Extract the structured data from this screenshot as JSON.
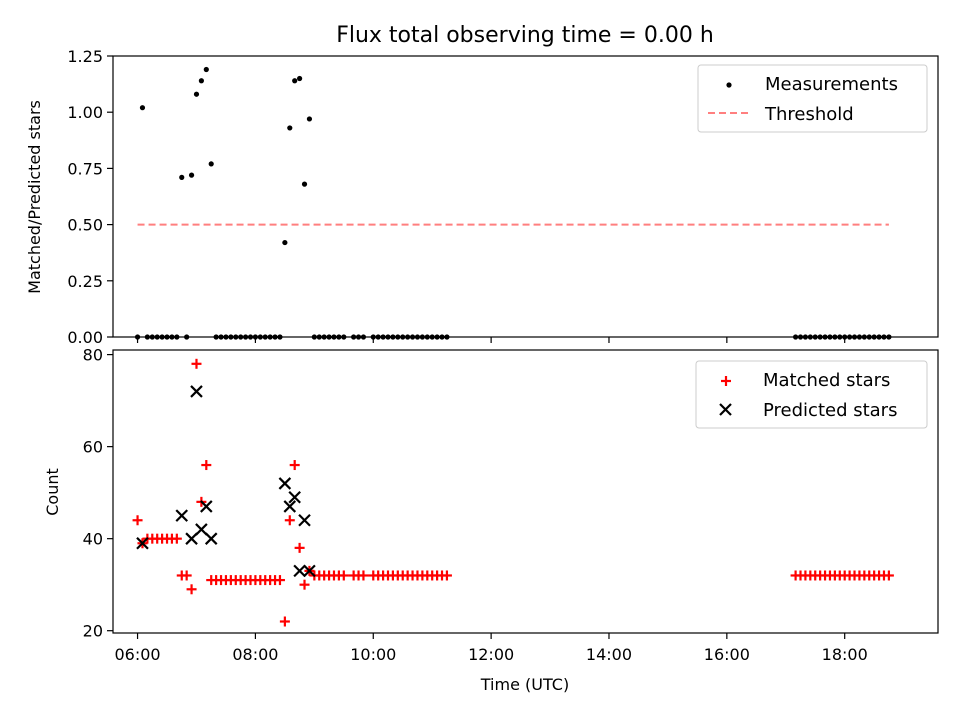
{
  "chart_data": [
    {
      "type": "scatter",
      "title": "Flux total observing time = 0.00 h",
      "xlabel": "",
      "ylabel": "Matched/Predicted stars",
      "xlim": [
        "05:35",
        "19:35"
      ],
      "ylim": [
        0,
        1.25
      ],
      "yticks": [
        "0.00",
        "0.25",
        "0.50",
        "0.75",
        "1.00",
        "1.25"
      ],
      "legend_position": "top-right",
      "series": [
        {
          "name": "Measurements",
          "marker": "dot",
          "color": "#000000",
          "points": [
            [
              "06:00",
              0.0
            ],
            [
              "06:05",
              1.02
            ],
            [
              "06:10",
              0.0
            ],
            [
              "06:15",
              0.0
            ],
            [
              "06:20",
              0.0
            ],
            [
              "06:25",
              0.0
            ],
            [
              "06:30",
              0.0
            ],
            [
              "06:35",
              0.0
            ],
            [
              "06:40",
              0.0
            ],
            [
              "06:45",
              0.71
            ],
            [
              "06:50",
              0.0
            ],
            [
              "06:55",
              0.72
            ],
            [
              "07:00",
              1.08
            ],
            [
              "07:05",
              1.14
            ],
            [
              "07:10",
              1.19
            ],
            [
              "07:15",
              0.77
            ],
            [
              "07:20",
              0.0
            ],
            [
              "07:25",
              0.0
            ],
            [
              "07:30",
              0.0
            ],
            [
              "07:35",
              0.0
            ],
            [
              "07:40",
              0.0
            ],
            [
              "07:45",
              0.0
            ],
            [
              "07:50",
              0.0
            ],
            [
              "07:55",
              0.0
            ],
            [
              "08:00",
              0.0
            ],
            [
              "08:05",
              0.0
            ],
            [
              "08:10",
              0.0
            ],
            [
              "08:15",
              0.0
            ],
            [
              "08:20",
              0.0
            ],
            [
              "08:25",
              0.0
            ],
            [
              "08:30",
              0.42
            ],
            [
              "08:35",
              0.93
            ],
            [
              "08:40",
              1.14
            ],
            [
              "08:45",
              1.15
            ],
            [
              "08:50",
              0.68
            ],
            [
              "08:55",
              0.97
            ],
            [
              "09:00",
              0.0
            ],
            [
              "09:05",
              0.0
            ],
            [
              "09:10",
              0.0
            ],
            [
              "09:15",
              0.0
            ],
            [
              "09:20",
              0.0
            ],
            [
              "09:25",
              0.0
            ],
            [
              "09:30",
              0.0
            ],
            [
              "09:40",
              0.0
            ],
            [
              "09:45",
              0.0
            ],
            [
              "09:50",
              0.0
            ],
            [
              "10:00",
              0.0
            ],
            [
              "10:05",
              0.0
            ],
            [
              "10:10",
              0.0
            ],
            [
              "10:15",
              0.0
            ],
            [
              "10:20",
              0.0
            ],
            [
              "10:25",
              0.0
            ],
            [
              "10:30",
              0.0
            ],
            [
              "10:35",
              0.0
            ],
            [
              "10:40",
              0.0
            ],
            [
              "10:45",
              0.0
            ],
            [
              "10:50",
              0.0
            ],
            [
              "10:55",
              0.0
            ],
            [
              "11:00",
              0.0
            ],
            [
              "11:05",
              0.0
            ],
            [
              "11:10",
              0.0
            ],
            [
              "11:15",
              0.0
            ],
            [
              "17:10",
              0.0
            ],
            [
              "17:15",
              0.0
            ],
            [
              "17:20",
              0.0
            ],
            [
              "17:25",
              0.0
            ],
            [
              "17:30",
              0.0
            ],
            [
              "17:35",
              0.0
            ],
            [
              "17:40",
              0.0
            ],
            [
              "17:45",
              0.0
            ],
            [
              "17:50",
              0.0
            ],
            [
              "17:55",
              0.0
            ],
            [
              "18:00",
              0.0
            ],
            [
              "18:05",
              0.0
            ],
            [
              "18:10",
              0.0
            ],
            [
              "18:15",
              0.0
            ],
            [
              "18:20",
              0.0
            ],
            [
              "18:25",
              0.0
            ],
            [
              "18:30",
              0.0
            ],
            [
              "18:35",
              0.0
            ],
            [
              "18:40",
              0.0
            ],
            [
              "18:45",
              0.0
            ]
          ]
        },
        {
          "name": "Threshold",
          "marker": "dashed-line",
          "color": "#ff7f7f",
          "points": [
            [
              "06:00",
              0.5
            ],
            [
              "18:45",
              0.5
            ]
          ]
        }
      ]
    },
    {
      "type": "scatter",
      "title": "",
      "xlabel": "Time (UTC)",
      "ylabel": "Count",
      "xlim": [
        "05:35",
        "19:35"
      ],
      "ylim": [
        19.5,
        81
      ],
      "yticks": [
        "20",
        "40",
        "60",
        "80"
      ],
      "xticks": [
        "06:00",
        "08:00",
        "10:00",
        "12:00",
        "14:00",
        "16:00",
        "18:00"
      ],
      "legend_position": "top-right",
      "series": [
        {
          "name": "Matched stars",
          "marker": "plus",
          "color": "#ff0000",
          "points": [
            [
              "06:00",
              44
            ],
            [
              "06:05",
              39
            ],
            [
              "06:10",
              40
            ],
            [
              "06:15",
              40
            ],
            [
              "06:20",
              40
            ],
            [
              "06:25",
              40
            ],
            [
              "06:30",
              40
            ],
            [
              "06:35",
              40
            ],
            [
              "06:40",
              40
            ],
            [
              "06:45",
              32
            ],
            [
              "06:50",
              32
            ],
            [
              "06:55",
              29
            ],
            [
              "07:00",
              78
            ],
            [
              "07:05",
              48
            ],
            [
              "07:10",
              56
            ],
            [
              "07:15",
              31
            ],
            [
              "07:20",
              31
            ],
            [
              "07:25",
              31
            ],
            [
              "07:30",
              31
            ],
            [
              "07:35",
              31
            ],
            [
              "07:40",
              31
            ],
            [
              "07:45",
              31
            ],
            [
              "07:50",
              31
            ],
            [
              "07:55",
              31
            ],
            [
              "08:00",
              31
            ],
            [
              "08:05",
              31
            ],
            [
              "08:10",
              31
            ],
            [
              "08:15",
              31
            ],
            [
              "08:20",
              31
            ],
            [
              "08:25",
              31
            ],
            [
              "08:30",
              22
            ],
            [
              "08:35",
              44
            ],
            [
              "08:40",
              56
            ],
            [
              "08:45",
              38
            ],
            [
              "08:50",
              30
            ],
            [
              "08:55",
              33
            ],
            [
              "09:00",
              32
            ],
            [
              "09:05",
              32
            ],
            [
              "09:10",
              32
            ],
            [
              "09:15",
              32
            ],
            [
              "09:20",
              32
            ],
            [
              "09:25",
              32
            ],
            [
              "09:30",
              32
            ],
            [
              "09:40",
              32
            ],
            [
              "09:45",
              32
            ],
            [
              "09:50",
              32
            ],
            [
              "10:00",
              32
            ],
            [
              "10:05",
              32
            ],
            [
              "10:10",
              32
            ],
            [
              "10:15",
              32
            ],
            [
              "10:20",
              32
            ],
            [
              "10:25",
              32
            ],
            [
              "10:30",
              32
            ],
            [
              "10:35",
              32
            ],
            [
              "10:40",
              32
            ],
            [
              "10:45",
              32
            ],
            [
              "10:50",
              32
            ],
            [
              "10:55",
              32
            ],
            [
              "11:00",
              32
            ],
            [
              "11:05",
              32
            ],
            [
              "11:10",
              32
            ],
            [
              "11:15",
              32
            ],
            [
              "17:10",
              32
            ],
            [
              "17:15",
              32
            ],
            [
              "17:20",
              32
            ],
            [
              "17:25",
              32
            ],
            [
              "17:30",
              32
            ],
            [
              "17:35",
              32
            ],
            [
              "17:40",
              32
            ],
            [
              "17:45",
              32
            ],
            [
              "17:50",
              32
            ],
            [
              "17:55",
              32
            ],
            [
              "18:00",
              32
            ],
            [
              "18:05",
              32
            ],
            [
              "18:10",
              32
            ],
            [
              "18:15",
              32
            ],
            [
              "18:20",
              32
            ],
            [
              "18:25",
              32
            ],
            [
              "18:30",
              32
            ],
            [
              "18:35",
              32
            ],
            [
              "18:40",
              32
            ],
            [
              "18:45",
              32
            ]
          ]
        },
        {
          "name": "Predicted stars",
          "marker": "x",
          "color": "#000000",
          "points": [
            [
              "06:05",
              39
            ],
            [
              "06:45",
              45
            ],
            [
              "06:55",
              40
            ],
            [
              "07:00",
              72
            ],
            [
              "07:05",
              42
            ],
            [
              "07:10",
              47
            ],
            [
              "07:15",
              40
            ],
            [
              "08:30",
              52
            ],
            [
              "08:35",
              47
            ],
            [
              "08:40",
              49
            ],
            [
              "08:45",
              33
            ],
            [
              "08:50",
              44
            ],
            [
              "08:55",
              33
            ]
          ]
        }
      ]
    }
  ]
}
